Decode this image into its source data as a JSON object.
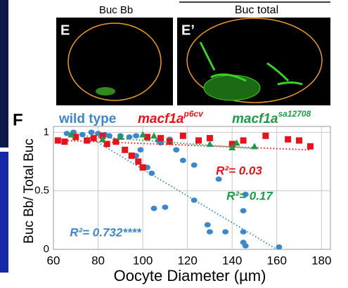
{
  "panels": {
    "header_left": "Buc Bb",
    "header_right": "Buc total",
    "label_e": "E",
    "label_e2": "E’",
    "label_f": "F"
  },
  "chart_data": {
    "type": "scatter",
    "x_label": "Oocyte Diameter (µm)",
    "y_label": "Buc Bb/ Total Buc",
    "xlim": [
      60,
      184
    ],
    "ylim": [
      0,
      1.05
    ],
    "xticks": [
      60,
      80,
      100,
      120,
      140,
      160,
      180
    ],
    "yticks": [
      0,
      0.5,
      1
    ],
    "grid": true,
    "series": [
      {
        "name": "wild type",
        "color": "#3d87c9",
        "marker": "circle",
        "x": [
          66,
          69,
          73,
          77,
          80,
          83,
          85,
          90,
          94,
          97,
          102,
          108,
          99,
          97,
          102,
          104,
          107,
          112,
          115,
          118,
          123,
          105,
          110,
          123,
          134,
          129,
          130,
          137,
          145,
          145,
          146,
          161,
          145,
          146
        ],
        "values": [
          0.99,
          1.0,
          0.98,
          1.0,
          0.99,
          0.98,
          0.97,
          0.97,
          0.96,
          0.97,
          0.95,
          0.91,
          0.85,
          0.8,
          0.7,
          0.65,
          0.93,
          0.94,
          0.85,
          0.76,
          0.72,
          0.35,
          0.36,
          0.42,
          0.6,
          0.21,
          0.15,
          0.15,
          0.33,
          0.06,
          0.03,
          0.02,
          0.15,
          0.47
        ],
        "trendline": {
          "x": [
            75,
            160
          ],
          "y": [
            0.97,
            0.0
          ]
        },
        "r2_label": "R²= 0.732****"
      },
      {
        "name": "macf1a",
        "superscript": "p6cv",
        "color": "#e3141b",
        "marker": "square",
        "x": [
          62,
          65,
          70,
          75,
          78,
          82,
          84,
          88,
          92,
          95,
          98,
          100,
          102,
          108,
          112,
          118,
          125,
          130,
          140,
          145,
          155,
          165,
          170,
          175
        ],
        "values": [
          0.93,
          0.92,
          0.96,
          0.93,
          0.95,
          0.97,
          0.9,
          0.92,
          0.85,
          0.8,
          0.75,
          0.7,
          0.96,
          0.95,
          0.92,
          0.97,
          0.93,
          0.95,
          0.9,
          0.93,
          0.97,
          0.94,
          0.93,
          0.88
        ],
        "trendline": {
          "x": [
            65,
            175
          ],
          "y": [
            0.93,
            0.85
          ]
        },
        "r2_label": "R²= 0.03"
      },
      {
        "name": "macf1a",
        "superscript": "sa12708",
        "color": "#1e9a4a",
        "marker": "triangle",
        "x": [
          68,
          82,
          90,
          100,
          105,
          130,
          140,
          142,
          150
        ],
        "values": [
          0.98,
          0.94,
          0.96,
          0.98,
          0.97,
          0.9,
          0.87,
          0.91,
          0.88
        ],
        "trendline": {
          "x": [
            80,
            150
          ],
          "y": [
            0.96,
            0.86
          ]
        },
        "r2_label": "R²= 0.17"
      }
    ]
  }
}
